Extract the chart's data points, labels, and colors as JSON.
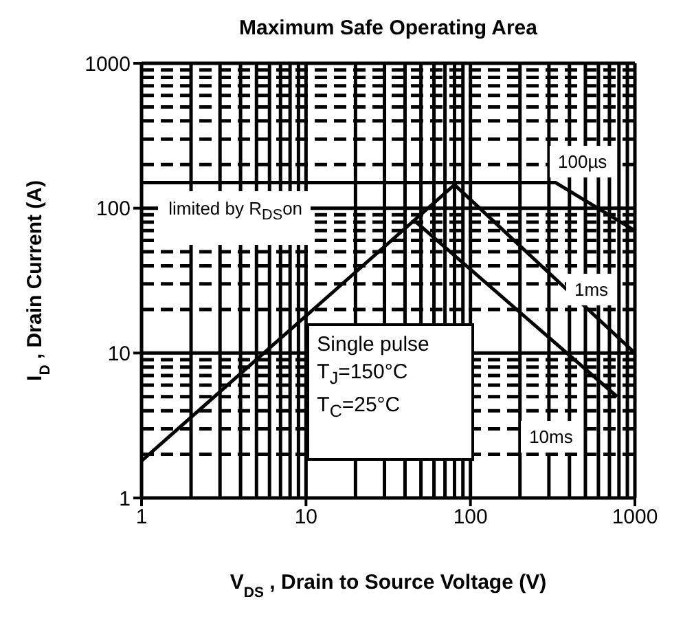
{
  "chart_data": {
    "type": "line",
    "title": "Maximum Safe Operating Area",
    "xlabel": "V$_{DS}$, Drain to Source Voltage (V)",
    "ylabel": "I$_{D}$, Drain Current (A)",
    "log": "xy",
    "xlim": [
      1,
      1000
    ],
    "ylim": [
      1,
      1000
    ],
    "xticks": [
      1,
      10,
      100,
      1000
    ],
    "yticks": [
      1,
      10,
      100,
      1000
    ],
    "grid": true,
    "legend": false,
    "marker": "none",
    "line_style": "solid",
    "series": [
      {
        "color": "#000000",
        "x": [
          1,
          80
        ],
        "values": [
          1.8,
          145
        ]
      },
      {
        "name": "100µs",
        "color": "#000000",
        "x": [
          1,
          330,
          1000
        ],
        "values": [
          150,
          150,
          70
        ]
      },
      {
        "name": "1ms",
        "color": "#000000",
        "x": [
          80,
          1000
        ],
        "values": [
          145,
          10
        ]
      },
      {
        "name": "10ms",
        "color": "#000000",
        "x": [
          45,
          780
        ],
        "values": [
          83,
          5
        ]
      }
    ],
    "annotations": [
      "limited by R$_{DS}$on",
      "Single pulse",
      "T$_{J}$=150°C",
      "T$_{C}$=25°C"
    ]
  }
}
